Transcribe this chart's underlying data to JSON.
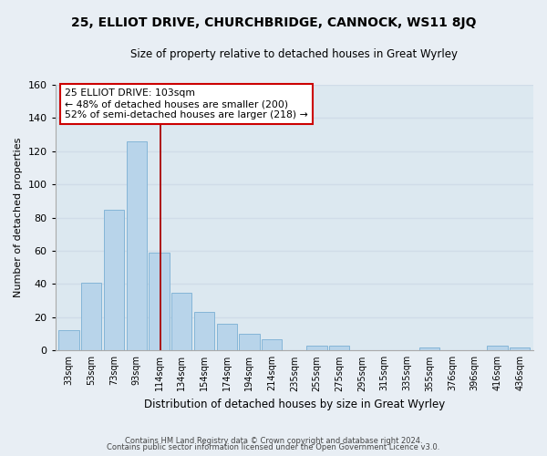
{
  "title": "25, ELLIOT DRIVE, CHURCHBRIDGE, CANNOCK, WS11 8JQ",
  "subtitle": "Size of property relative to detached houses in Great Wyrley",
  "xlabel": "Distribution of detached houses by size in Great Wyrley",
  "ylabel": "Number of detached properties",
  "bar_labels": [
    "33sqm",
    "53sqm",
    "73sqm",
    "93sqm",
    "114sqm",
    "134sqm",
    "154sqm",
    "174sqm",
    "194sqm",
    "214sqm",
    "235sqm",
    "255sqm",
    "275sqm",
    "295sqm",
    "315sqm",
    "335sqm",
    "355sqm",
    "376sqm",
    "396sqm",
    "416sqm",
    "436sqm"
  ],
  "bar_values": [
    12,
    41,
    85,
    126,
    59,
    35,
    23,
    16,
    10,
    7,
    0,
    3,
    3,
    0,
    0,
    0,
    2,
    0,
    0,
    3,
    2
  ],
  "bar_color": "#b8d4ea",
  "bar_edge_color": "#7aafd4",
  "ylim": [
    0,
    160
  ],
  "yticks": [
    0,
    20,
    40,
    60,
    80,
    100,
    120,
    140,
    160
  ],
  "vline_x": 4.07,
  "vline_color": "#aa0000",
  "annotation_title": "25 ELLIOT DRIVE: 103sqm",
  "annotation_line1": "← 48% of detached houses are smaller (200)",
  "annotation_line2": "52% of semi-detached houses are larger (218) →",
  "annotation_box_color": "#ffffff",
  "annotation_box_edge": "#cc0000",
  "footer_line1": "Contains HM Land Registry data © Crown copyright and database right 2024.",
  "footer_line2": "Contains public sector information licensed under the Open Government Licence v3.0.",
  "bg_color": "#e8eef4",
  "grid_color": "#d0dce8",
  "plot_bg_color": "#dce8f0"
}
